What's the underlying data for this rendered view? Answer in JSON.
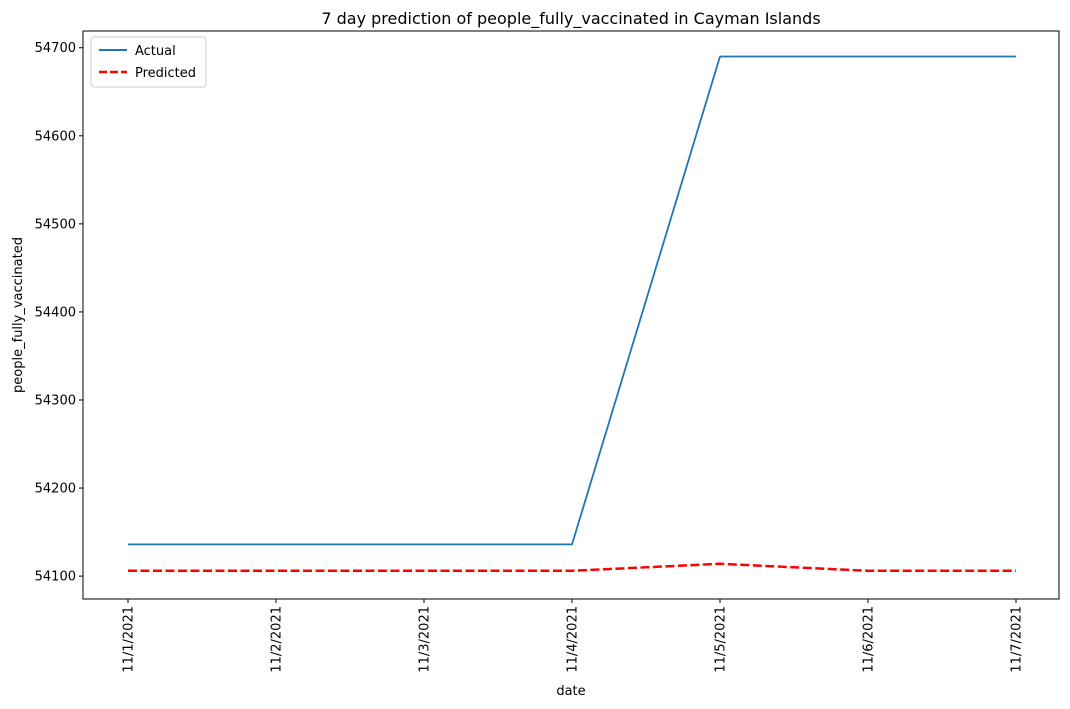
{
  "chart_data": {
    "type": "line",
    "title": "7 day prediction of people_fully_vaccinated in Cayman Islands",
    "xlabel": "date",
    "ylabel": "people_fully_vaccinated",
    "x": [
      "11/1/2021",
      "11/2/2021",
      "11/3/2021",
      "11/4/2021",
      "11/5/2021",
      "11/6/2021",
      "11/7/2021"
    ],
    "ylim": [
      54074,
      54719
    ],
    "yticks": [
      54100,
      54200,
      54300,
      54400,
      54500,
      54600,
      54700
    ],
    "grid": false,
    "legend_position": "top-left",
    "series": [
      {
        "name": "Actual",
        "color": "#1f77b4",
        "style": "solid",
        "values": [
          54136,
          54136,
          54136,
          54136,
          54690,
          54690,
          54690
        ]
      },
      {
        "name": "Predicted",
        "color": "#ff0000",
        "style": "dashed",
        "values": [
          54106,
          54106,
          54106,
          54106,
          54114,
          54106,
          54106
        ]
      }
    ]
  }
}
